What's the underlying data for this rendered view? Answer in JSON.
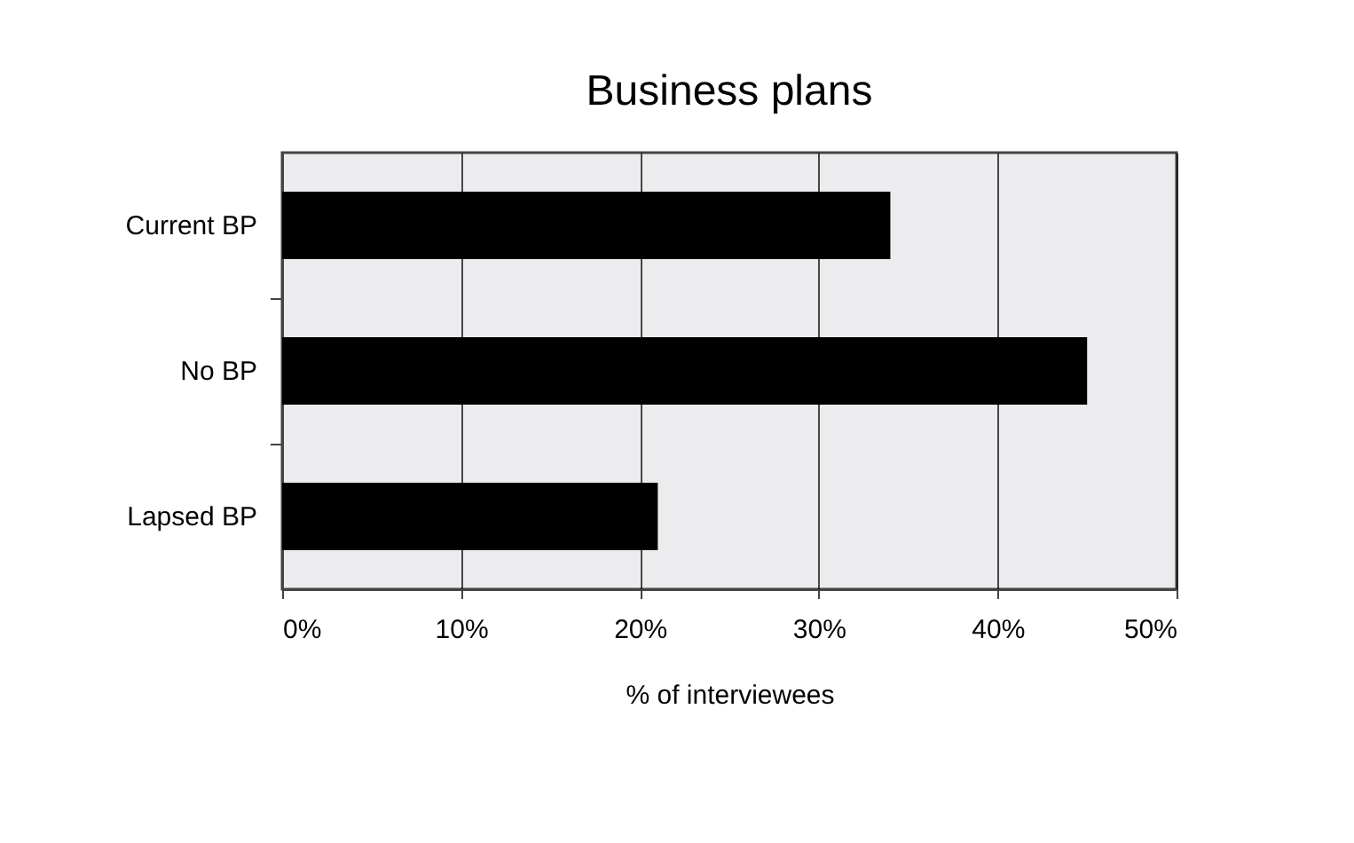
{
  "chart_data": {
    "type": "bar",
    "orientation": "horizontal",
    "title": "Business plans",
    "xlabel": "% of interviewees",
    "categories": [
      "Current BP",
      "No BP",
      "Lapsed BP"
    ],
    "values": [
      34,
      45,
      21
    ],
    "color": "#000000",
    "xlim": [
      0,
      50
    ],
    "xticks": [
      {
        "value": 0,
        "label": "0%"
      },
      {
        "value": 10,
        "label": "10%"
      },
      {
        "value": 20,
        "label": "20%"
      },
      {
        "value": 30,
        "label": "30%"
      },
      {
        "value": 40,
        "label": "40%"
      },
      {
        "value": 50,
        "label": "50%"
      }
    ],
    "grid": "x"
  }
}
